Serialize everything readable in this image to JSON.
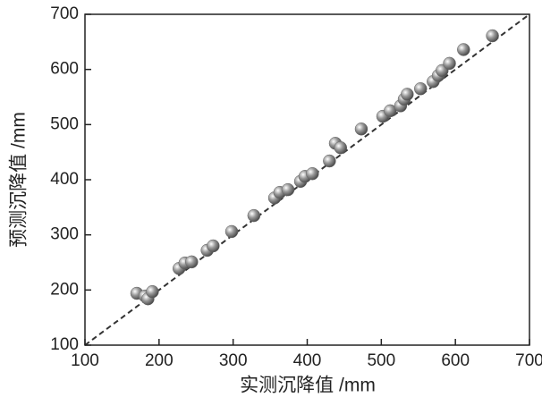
{
  "chart_data": {
    "type": "scatter",
    "x_label": "实测沉降值 /mm",
    "y_label": "预测沉降值 /mm",
    "x": [
      170,
      181,
      185,
      191,
      227,
      235,
      244,
      265,
      273,
      298,
      328,
      356,
      363,
      374,
      391,
      397,
      407,
      430,
      438,
      445,
      473,
      502,
      512,
      526,
      531,
      535,
      553,
      570,
      577,
      582,
      592,
      611,
      650
    ],
    "values": [
      194,
      189,
      184,
      197,
      239,
      249,
      251,
      272,
      280,
      306,
      335,
      367,
      377,
      382,
      397,
      406,
      411,
      434,
      466,
      458,
      492,
      515,
      525,
      534,
      546,
      555,
      565,
      578,
      589,
      598,
      611,
      636,
      661
    ],
    "color": "#999999",
    "xlim": [
      100,
      700
    ],
    "ylim": [
      100,
      700
    ],
    "xticks": [
      100,
      200,
      300,
      400,
      500,
      600,
      700
    ],
    "yticks": [
      100,
      200,
      300,
      400,
      500,
      600,
      700
    ],
    "grid": false
  }
}
